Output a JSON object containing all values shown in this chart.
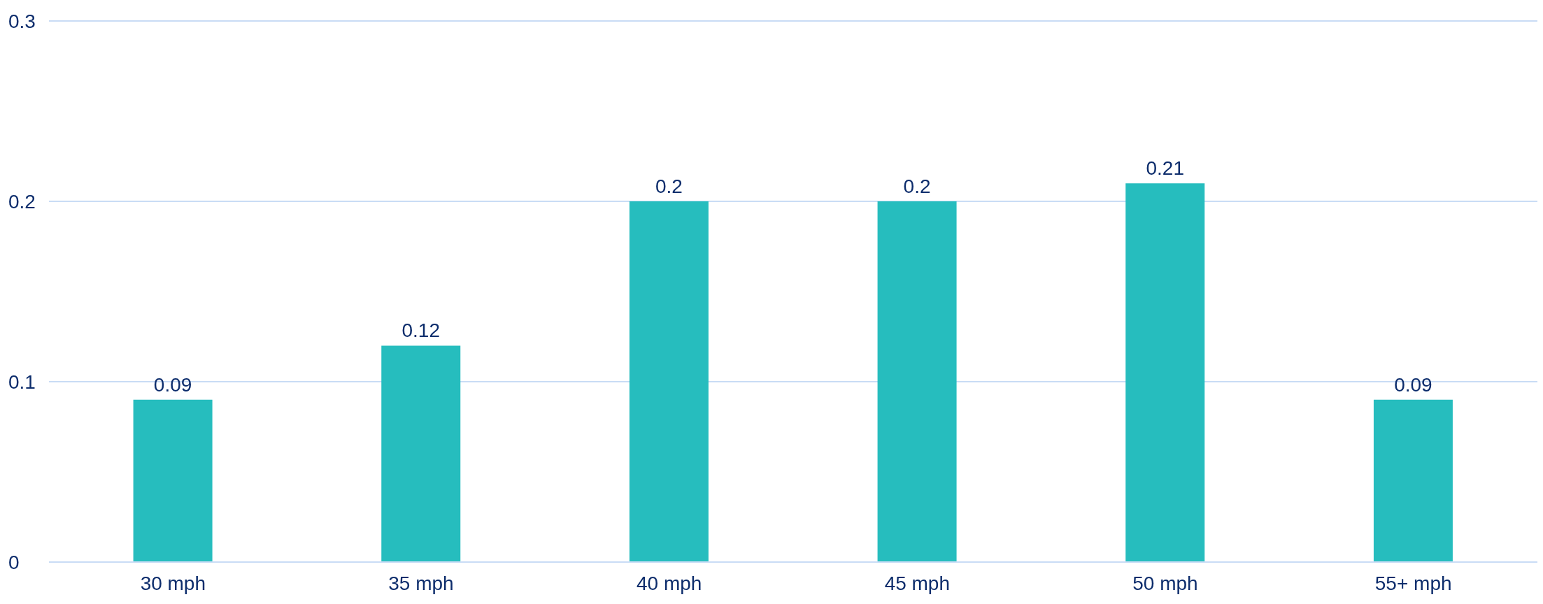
{
  "chart_data": {
    "type": "bar",
    "categories": [
      "30 mph",
      "35 mph",
      "40 mph",
      "45 mph",
      "50 mph",
      "55+ mph"
    ],
    "values": [
      0.09,
      0.12,
      0.2,
      0.2,
      0.21,
      0.09
    ],
    "color": "#26bdbe",
    "ylim": [
      0,
      0.3
    ],
    "yticks": [
      0,
      0.1,
      0.2,
      0.3
    ],
    "grid": "y",
    "data_labels": true
  }
}
